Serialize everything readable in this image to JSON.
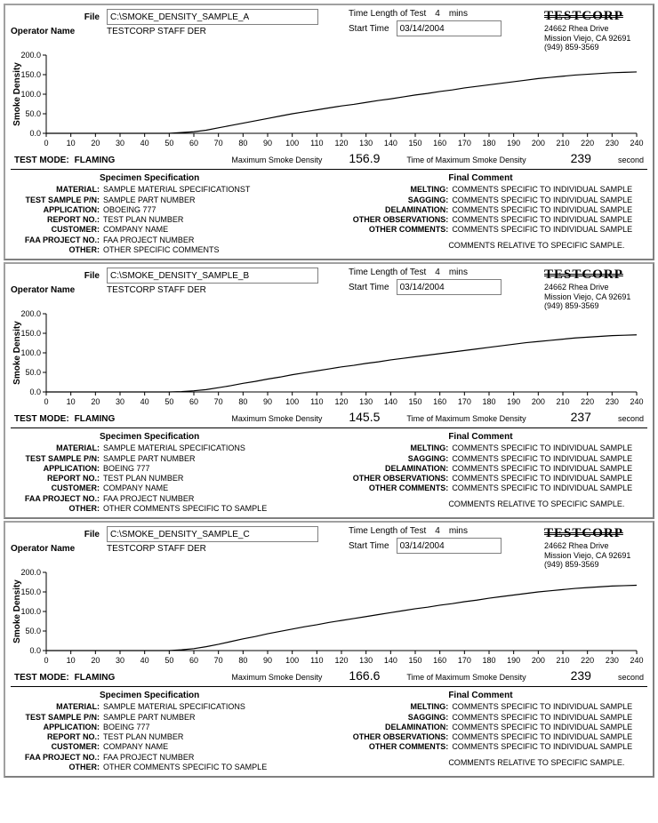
{
  "company": {
    "name": "TESTCORP",
    "addr1": "24662 Rhea Drive",
    "addr2": "Mission Viejo, CA 92691",
    "phone": "(949) 859-3569"
  },
  "labels": {
    "file": "File",
    "operator": "Operator Name",
    "time_length": "Time Length of Test",
    "mins": "mins",
    "start_time": "Start Time",
    "test_mode": "TEST MODE:",
    "max_sd": "Maximum Smoke Density",
    "time_max_sd": "Time of Maximum Smoke Density",
    "second": "second",
    "spec_heading": "Specimen Specification",
    "comment_heading": "Final Comment",
    "material": "MATERIAL:",
    "part": "TEST SAMPLE P/N:",
    "application": "APPLICATION:",
    "report": "REPORT NO.:",
    "customer": "CUSTOMER:",
    "faa": "FAA PROJECT NO.:",
    "other": "OTHER:",
    "melting": "MELTING:",
    "sagging": "SAGGING:",
    "delamination": "DELAMINATION:",
    "other_obs": "OTHER OBSERVATIONS:",
    "other_comments": "OTHER COMMENTS:"
  },
  "chart": {
    "ylabel": "Smoke Density",
    "xlim": [
      0,
      240
    ],
    "ylim": [
      0,
      200
    ],
    "xtick_step": 10,
    "yticks": [
      0.0,
      50.0,
      100.0,
      150.0,
      200.0
    ],
    "line_color": "#000000",
    "axis_color": "#000000",
    "tick_fontsize": 9,
    "label_fontsize": 10
  },
  "panels": [
    {
      "file": "C:\\SMOKE_DENSITY_SAMPLE_A",
      "operator": "TESTCORP STAFF DER",
      "time_length": "4",
      "start_time": "03/14/2004",
      "test_mode": "FLAMING",
      "max_density": "156.9",
      "time_of_max": "239",
      "spec": {
        "material": "SAMPLE MATERIAL SPECIFICATIONST",
        "part": "SAMPLE PART NUMBER",
        "application": "OBOEING 777",
        "report": "TEST PLAN NUMBER",
        "customer": "COMPANY NAME",
        "faa": "FAA PROJECT NUMBER",
        "other": "OTHER SPECIFIC COMMENTS"
      },
      "comments": {
        "melting": "COMMENTS SPECIFIC TO INDIVIDUAL SAMPLE",
        "sagging": "COMMENTS SPECIFIC TO INDIVIDUAL SAMPLE",
        "delamination": "COMMENTS SPECIFIC TO INDIVIDUAL SAMPLE",
        "other_obs": "COMMENTS SPECIFIC TO INDIVIDUAL SAMPLE",
        "other_comments": "COMMENTS SPECIFIC TO INDIVIDUAL SAMPLE",
        "relative": "COMMENTS RELATIVE TO SPECIFIC SAMPLE."
      },
      "curve": [
        [
          0,
          0
        ],
        [
          10,
          0
        ],
        [
          20,
          0
        ],
        [
          30,
          0
        ],
        [
          40,
          0
        ],
        [
          50,
          0
        ],
        [
          55,
          2
        ],
        [
          60,
          4
        ],
        [
          65,
          8
        ],
        [
          70,
          14
        ],
        [
          75,
          20
        ],
        [
          80,
          26
        ],
        [
          85,
          32
        ],
        [
          90,
          38
        ],
        [
          95,
          44
        ],
        [
          100,
          50
        ],
        [
          105,
          55
        ],
        [
          110,
          60
        ],
        [
          115,
          65
        ],
        [
          120,
          70
        ],
        [
          125,
          74
        ],
        [
          130,
          79
        ],
        [
          135,
          84
        ],
        [
          140,
          88
        ],
        [
          145,
          93
        ],
        [
          150,
          98
        ],
        [
          155,
          102
        ],
        [
          160,
          107
        ],
        [
          165,
          111
        ],
        [
          170,
          116
        ],
        [
          175,
          120
        ],
        [
          180,
          124
        ],
        [
          185,
          128
        ],
        [
          190,
          132
        ],
        [
          195,
          136
        ],
        [
          200,
          140
        ],
        [
          205,
          143
        ],
        [
          210,
          146
        ],
        [
          215,
          149
        ],
        [
          220,
          151
        ],
        [
          225,
          153
        ],
        [
          230,
          155
        ],
        [
          235,
          156
        ],
        [
          240,
          157
        ]
      ]
    },
    {
      "file": "C:\\SMOKE_DENSITY_SAMPLE_B",
      "operator": "TESTCORP STAFF DER",
      "time_length": "4",
      "start_time": "03/14/2004",
      "test_mode": "FLAMING",
      "max_density": "145.5",
      "time_of_max": "237",
      "spec": {
        "material": "SAMPLE MATERIAL SPECIFICATIONS",
        "part": "SAMPLE PART NUMBER",
        "application": "BOEING 777",
        "report": "TEST PLAN NUMBER",
        "customer": "COMPANY NAME",
        "faa": "FAA PROJECT NUMBER",
        "other": "OTHER COMMENTS SPECIFIC TO SAMPLE"
      },
      "comments": {
        "melting": "COMMENTS SPECIFIC TO INDIVIDUAL SAMPLE",
        "sagging": "COMMENTS SPECIFIC TO INDIVIDUAL SAMPLE",
        "delamination": "COMMENTS SPECIFIC TO INDIVIDUAL SAMPLE",
        "other_obs": "COMMENTS SPECIFIC TO INDIVIDUAL SAMPLE",
        "other_comments": "COMMENTS SPECIFIC TO INDIVIDUAL SAMPLE",
        "relative": "COMMENTS RELATIVE TO SPECIFIC SAMPLE."
      },
      "curve": [
        [
          0,
          0
        ],
        [
          10,
          0
        ],
        [
          20,
          0
        ],
        [
          30,
          0
        ],
        [
          40,
          0
        ],
        [
          50,
          0
        ],
        [
          55,
          1
        ],
        [
          60,
          3
        ],
        [
          65,
          6
        ],
        [
          70,
          11
        ],
        [
          75,
          16
        ],
        [
          80,
          22
        ],
        [
          85,
          27
        ],
        [
          90,
          33
        ],
        [
          95,
          38
        ],
        [
          100,
          44
        ],
        [
          105,
          49
        ],
        [
          110,
          54
        ],
        [
          115,
          59
        ],
        [
          120,
          64
        ],
        [
          125,
          68
        ],
        [
          130,
          73
        ],
        [
          135,
          77
        ],
        [
          140,
          82
        ],
        [
          145,
          86
        ],
        [
          150,
          90
        ],
        [
          155,
          94
        ],
        [
          160,
          98
        ],
        [
          165,
          102
        ],
        [
          170,
          106
        ],
        [
          175,
          110
        ],
        [
          180,
          114
        ],
        [
          185,
          118
        ],
        [
          190,
          122
        ],
        [
          195,
          126
        ],
        [
          200,
          129
        ],
        [
          205,
          132
        ],
        [
          210,
          135
        ],
        [
          215,
          138
        ],
        [
          220,
          140
        ],
        [
          225,
          142
        ],
        [
          230,
          144
        ],
        [
          235,
          145
        ],
        [
          240,
          146
        ]
      ]
    },
    {
      "file": "C:\\SMOKE_DENSITY_SAMPLE_C",
      "operator": "TESTCORP STAFF DER",
      "time_length": "4",
      "start_time": "03/14/2004",
      "test_mode": "FLAMING",
      "max_density": "166.6",
      "time_of_max": "239",
      "spec": {
        "material": "SAMPLE MATERIAL SPECIFICATIONS",
        "part": "SAMPLE PART NUMBER",
        "application": "BOEING 777",
        "report": "TEST PLAN NUMBER",
        "customer": "COMPANY NAME",
        "faa": "FAA PROJECT NUMBER",
        "other": "OTHER COMMENTS SPECIFIC TO SAMPLE"
      },
      "comments": {
        "melting": "COMMENTS SPECIFIC TO INDIVIDUAL SAMPLE",
        "sagging": "COMMENTS SPECIFIC TO INDIVIDUAL SAMPLE",
        "delamination": "COMMENTS SPECIFIC TO INDIVIDUAL SAMPLE",
        "other_obs": "COMMENTS SPECIFIC TO INDIVIDUAL SAMPLE",
        "other_comments": "COMMENTS SPECIFIC TO INDIVIDUAL SAMPLE",
        "relative": "COMMENTS RELATIVE TO SPECIFIC SAMPLE."
      },
      "curve": [
        [
          0,
          0
        ],
        [
          10,
          0
        ],
        [
          20,
          0
        ],
        [
          30,
          0
        ],
        [
          40,
          0
        ],
        [
          50,
          0
        ],
        [
          55,
          2
        ],
        [
          60,
          5
        ],
        [
          65,
          10
        ],
        [
          70,
          16
        ],
        [
          75,
          23
        ],
        [
          80,
          30
        ],
        [
          85,
          36
        ],
        [
          90,
          43
        ],
        [
          95,
          49
        ],
        [
          100,
          55
        ],
        [
          105,
          61
        ],
        [
          110,
          66
        ],
        [
          115,
          72
        ],
        [
          120,
          77
        ],
        [
          125,
          82
        ],
        [
          130,
          87
        ],
        [
          135,
          92
        ],
        [
          140,
          97
        ],
        [
          145,
          102
        ],
        [
          150,
          107
        ],
        [
          155,
          111
        ],
        [
          160,
          116
        ],
        [
          165,
          120
        ],
        [
          170,
          125
        ],
        [
          175,
          129
        ],
        [
          180,
          134
        ],
        [
          185,
          138
        ],
        [
          190,
          142
        ],
        [
          195,
          146
        ],
        [
          200,
          150
        ],
        [
          205,
          153
        ],
        [
          210,
          156
        ],
        [
          215,
          159
        ],
        [
          220,
          161
        ],
        [
          225,
          163
        ],
        [
          230,
          165
        ],
        [
          235,
          166
        ],
        [
          240,
          167
        ]
      ]
    }
  ]
}
